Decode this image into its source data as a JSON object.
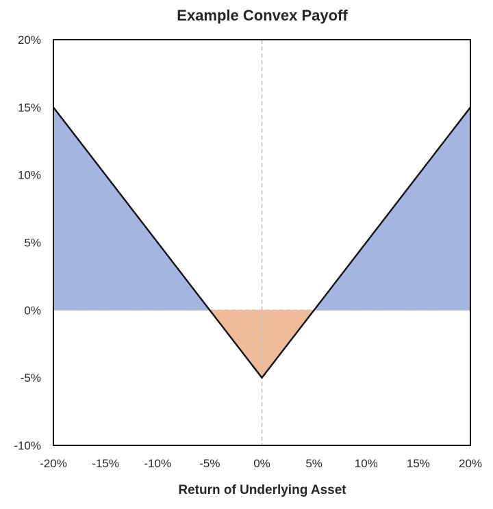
{
  "chart_data": {
    "type": "area",
    "title": "Example Convex Payoff",
    "xlabel": "Return of Underlying Asset",
    "ylabel": "",
    "xlim": [
      -0.2,
      0.2
    ],
    "ylim": [
      -0.1,
      0.2
    ],
    "x_ticks": [
      "-20%",
      "-15%",
      "-10%",
      "-5%",
      "0%",
      "5%",
      "10%",
      "15%",
      "20%"
    ],
    "x_tick_values": [
      -0.2,
      -0.15,
      -0.1,
      -0.05,
      0,
      0.05,
      0.1,
      0.15,
      0.2
    ],
    "y_ticks": [
      "-10%",
      "-5%",
      "0%",
      "5%",
      "10%",
      "15%",
      "20%"
    ],
    "y_tick_values": [
      -0.1,
      -0.05,
      0,
      0.05,
      0.1,
      0.15,
      0.2
    ],
    "grid": false,
    "payoff": {
      "x": [
        -0.2,
        -0.05,
        0,
        0.05,
        0.2
      ],
      "y": [
        0.15,
        0,
        -0.05,
        0,
        0.15
      ]
    },
    "reference_lines": [
      {
        "orientation": "vertical",
        "value": 0,
        "style": "dashed"
      },
      {
        "orientation": "horizontal",
        "value": 0,
        "style": "dashed"
      }
    ],
    "colors": {
      "payoff_line": "#111111",
      "positive_fill": "#a4b5e0",
      "negative_fill": "#f0bb98",
      "reference_line": "#c4c4c4",
      "frame": "#1a1a1a"
    }
  }
}
